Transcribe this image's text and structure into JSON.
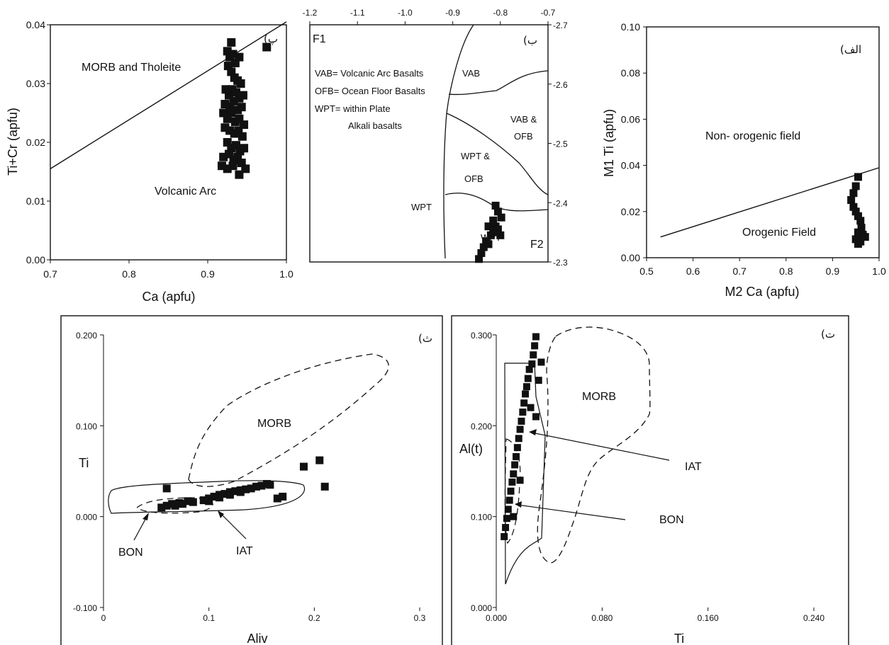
{
  "chart_data": [
    {
      "id": "p",
      "type": "scatter",
      "panel_tag": "(پ",
      "xlabel": "Ca (apfu)",
      "ylabel": "Ti+Cr (apfu)",
      "xlim": [
        0.7,
        1.0
      ],
      "ylim": [
        0.0,
        0.04
      ],
      "xticks": [
        "0.7",
        "0.8",
        "0.9",
        "1.0"
      ],
      "xtick_values": [
        0.7,
        0.8,
        0.9,
        1.0
      ],
      "yticks": [
        "0.00",
        "0.01",
        "0.02",
        "0.03",
        "0.04"
      ],
      "ytick_values": [
        0.0,
        0.01,
        0.02,
        0.03,
        0.04
      ],
      "annotations": [
        "MORB and Tholeite",
        "Volcanic Arc"
      ],
      "boundary_line": [
        [
          0.7,
          0.0155
        ],
        [
          1.0,
          0.0405
        ]
      ],
      "points": [
        [
          0.925,
          0.0355
        ],
        [
          0.928,
          0.0345
        ],
        [
          0.93,
          0.037
        ],
        [
          0.932,
          0.035
        ],
        [
          0.935,
          0.0335
        ],
        [
          0.94,
          0.0345
        ],
        [
          0.926,
          0.033
        ],
        [
          0.93,
          0.032
        ],
        [
          0.934,
          0.031
        ],
        [
          0.938,
          0.0305
        ],
        [
          0.942,
          0.03
        ],
        [
          0.923,
          0.029
        ],
        [
          0.927,
          0.028
        ],
        [
          0.931,
          0.029
        ],
        [
          0.936,
          0.0285
        ],
        [
          0.94,
          0.0275
        ],
        [
          0.945,
          0.028
        ],
        [
          0.922,
          0.0265
        ],
        [
          0.928,
          0.026
        ],
        [
          0.933,
          0.027
        ],
        [
          0.938,
          0.0255
        ],
        [
          0.943,
          0.026
        ],
        [
          0.92,
          0.025
        ],
        [
          0.925,
          0.024
        ],
        [
          0.93,
          0.025
        ],
        [
          0.935,
          0.0235
        ],
        [
          0.94,
          0.024
        ],
        [
          0.946,
          0.023
        ],
        [
          0.922,
          0.0225
        ],
        [
          0.928,
          0.022
        ],
        [
          0.934,
          0.0215
        ],
        [
          0.939,
          0.022
        ],
        [
          0.944,
          0.021
        ],
        [
          0.925,
          0.02
        ],
        [
          0.93,
          0.019
        ],
        [
          0.936,
          0.0195
        ],
        [
          0.941,
          0.0185
        ],
        [
          0.946,
          0.019
        ],
        [
          0.92,
          0.0175
        ],
        [
          0.927,
          0.018
        ],
        [
          0.933,
          0.017
        ],
        [
          0.938,
          0.0175
        ],
        [
          0.943,
          0.0165
        ],
        [
          0.918,
          0.016
        ],
        [
          0.925,
          0.0155
        ],
        [
          0.932,
          0.016
        ],
        [
          0.94,
          0.0145
        ],
        [
          0.948,
          0.0155
        ],
        [
          0.975,
          0.0362
        ]
      ]
    },
    {
      "id": "b",
      "type": "scatter",
      "panel_tag": "(ب",
      "xlabel": "F1",
      "ylabel": "F2",
      "xlim": [
        -1.2,
        -0.7
      ],
      "ylim": [
        -2.7,
        -2.3
      ],
      "xticks": [
        "-1.2",
        "-1.1",
        "-1.0",
        "-0.9",
        "-0.8",
        "-0.7"
      ],
      "xtick_values": [
        -1.2,
        -1.1,
        -1.0,
        -0.9,
        -0.8,
        -0.7
      ],
      "yticks": [
        "-2.3",
        "-2.4",
        "-2.5",
        "-2.6",
        "-2.7"
      ],
      "ytick_values": [
        -2.3,
        -2.4,
        -2.5,
        -2.6,
        -2.7
      ],
      "legend_text": [
        "VAB= Volcanic Arc Basalts",
        "OFB= Ocean Floor Basalts",
        "WPT=  within Plate",
        "Alkali basalts"
      ],
      "field_labels": [
        "VAB",
        "VAB &",
        "OFB",
        "WPT &",
        "OFB",
        "WPT",
        "WPT"
      ],
      "points": [
        [
          -0.845,
          -2.305
        ],
        [
          -0.84,
          -2.315
        ],
        [
          -0.835,
          -2.325
        ],
        [
          -0.83,
          -2.335
        ],
        [
          -0.825,
          -2.33
        ],
        [
          -0.82,
          -2.345
        ],
        [
          -0.815,
          -2.35
        ],
        [
          -0.81,
          -2.36
        ],
        [
          -0.805,
          -2.355
        ],
        [
          -0.8,
          -2.345
        ],
        [
          -0.815,
          -2.37
        ],
        [
          -0.805,
          -2.385
        ],
        [
          -0.81,
          -2.395
        ],
        [
          -0.798,
          -2.375
        ],
        [
          -0.825,
          -2.36
        ]
      ]
    },
    {
      "id": "alef",
      "type": "scatter",
      "panel_tag": "(الف",
      "xlabel": "M2 Ca (apfu)",
      "ylabel": "M1 Ti (apfu)",
      "xlim": [
        0.5,
        1.0
      ],
      "ylim": [
        0.0,
        0.1
      ],
      "xticks": [
        "0.5",
        "0.6",
        "0.7",
        "0.8",
        "0.9",
        "1.0"
      ],
      "xtick_values": [
        0.5,
        0.6,
        0.7,
        0.8,
        0.9,
        1.0
      ],
      "yticks": [
        "0.00",
        "0.02",
        "0.04",
        "0.06",
        "0.08",
        "0.10"
      ],
      "ytick_values": [
        0.0,
        0.02,
        0.04,
        0.06,
        0.08,
        0.1
      ],
      "annotations": [
        "Non- orogenic field",
        "Orogenic Field"
      ],
      "boundary_line": [
        [
          0.53,
          0.009
        ],
        [
          1.0,
          0.039
        ]
      ],
      "points": [
        [
          0.955,
          0.035
        ],
        [
          0.95,
          0.031
        ],
        [
          0.945,
          0.028
        ],
        [
          0.94,
          0.025
        ],
        [
          0.945,
          0.022
        ],
        [
          0.95,
          0.02
        ],
        [
          0.955,
          0.018
        ],
        [
          0.96,
          0.016
        ],
        [
          0.962,
          0.013
        ],
        [
          0.955,
          0.011
        ],
        [
          0.965,
          0.01
        ],
        [
          0.97,
          0.009
        ],
        [
          0.95,
          0.008
        ],
        [
          0.96,
          0.007
        ],
        [
          0.955,
          0.006
        ]
      ]
    },
    {
      "id": "th",
      "type": "scatter",
      "panel_tag": "(ث",
      "xlabel": "Aliv",
      "ylabel": "Ti",
      "xlim": [
        0,
        0.3
      ],
      "ylim": [
        -0.1,
        0.2
      ],
      "xticks": [
        "0",
        "0.1",
        "0.2",
        "0.3"
      ],
      "xtick_values": [
        0,
        0.1,
        0.2,
        0.3
      ],
      "yticks": [
        "0.200",
        "0.100",
        "0.000",
        "-0.100"
      ],
      "ytick_values": [
        0.2,
        0.1,
        0.0,
        -0.1
      ],
      "annotations": [
        "MORB",
        "BON",
        "IAT"
      ],
      "points": [
        [
          0.055,
          0.01
        ],
        [
          0.06,
          0.012
        ],
        [
          0.065,
          0.014
        ],
        [
          0.068,
          0.012
        ],
        [
          0.072,
          0.015
        ],
        [
          0.075,
          0.014
        ],
        [
          0.08,
          0.017
        ],
        [
          0.085,
          0.016
        ],
        [
          0.06,
          0.031
        ],
        [
          0.095,
          0.018
        ],
        [
          0.1,
          0.02
        ],
        [
          0.105,
          0.022
        ],
        [
          0.11,
          0.024
        ],
        [
          0.115,
          0.025
        ],
        [
          0.12,
          0.027
        ],
        [
          0.125,
          0.028
        ],
        [
          0.13,
          0.029
        ],
        [
          0.135,
          0.03
        ],
        [
          0.14,
          0.031
        ],
        [
          0.145,
          0.033
        ],
        [
          0.15,
          0.034
        ],
        [
          0.155,
          0.036
        ],
        [
          0.158,
          0.035
        ],
        [
          0.1,
          0.017
        ],
        [
          0.11,
          0.021
        ],
        [
          0.12,
          0.024
        ],
        [
          0.13,
          0.027
        ],
        [
          0.165,
          0.02
        ],
        [
          0.17,
          0.022
        ],
        [
          0.19,
          0.055
        ],
        [
          0.205,
          0.062
        ],
        [
          0.21,
          0.033
        ]
      ]
    },
    {
      "id": "t",
      "type": "scatter",
      "panel_tag": "(ت",
      "xlabel": "Ti",
      "ylabel": "Al(t)",
      "xlim": [
        0.0,
        0.24
      ],
      "ylim": [
        0.0,
        0.3
      ],
      "xticks": [
        "0.000",
        "0.080",
        "0.160",
        "0.240"
      ],
      "xtick_values": [
        0.0,
        0.08,
        0.16,
        0.24
      ],
      "yticks": [
        "0.300",
        "0.200",
        "0.100",
        "0.000"
      ],
      "ytick_values": [
        0.3,
        0.2,
        0.1,
        0.0
      ],
      "annotations": [
        "MORB",
        "IAT",
        "BON"
      ],
      "points": [
        [
          0.03,
          0.298
        ],
        [
          0.029,
          0.288
        ],
        [
          0.028,
          0.278
        ],
        [
          0.027,
          0.268
        ],
        [
          0.025,
          0.262
        ],
        [
          0.024,
          0.252
        ],
        [
          0.023,
          0.243
        ],
        [
          0.022,
          0.235
        ],
        [
          0.021,
          0.225
        ],
        [
          0.02,
          0.215
        ],
        [
          0.019,
          0.205
        ],
        [
          0.018,
          0.196
        ],
        [
          0.017,
          0.186
        ],
        [
          0.016,
          0.176
        ],
        [
          0.015,
          0.166
        ],
        [
          0.014,
          0.157
        ],
        [
          0.013,
          0.147
        ],
        [
          0.012,
          0.138
        ],
        [
          0.011,
          0.128
        ],
        [
          0.01,
          0.118
        ],
        [
          0.009,
          0.108
        ],
        [
          0.008,
          0.098
        ],
        [
          0.007,
          0.088
        ],
        [
          0.006,
          0.078
        ],
        [
          0.032,
          0.25
        ],
        [
          0.03,
          0.21
        ],
        [
          0.026,
          0.22
        ],
        [
          0.018,
          0.14
        ],
        [
          0.013,
          0.1
        ],
        [
          0.034,
          0.27
        ]
      ]
    }
  ]
}
